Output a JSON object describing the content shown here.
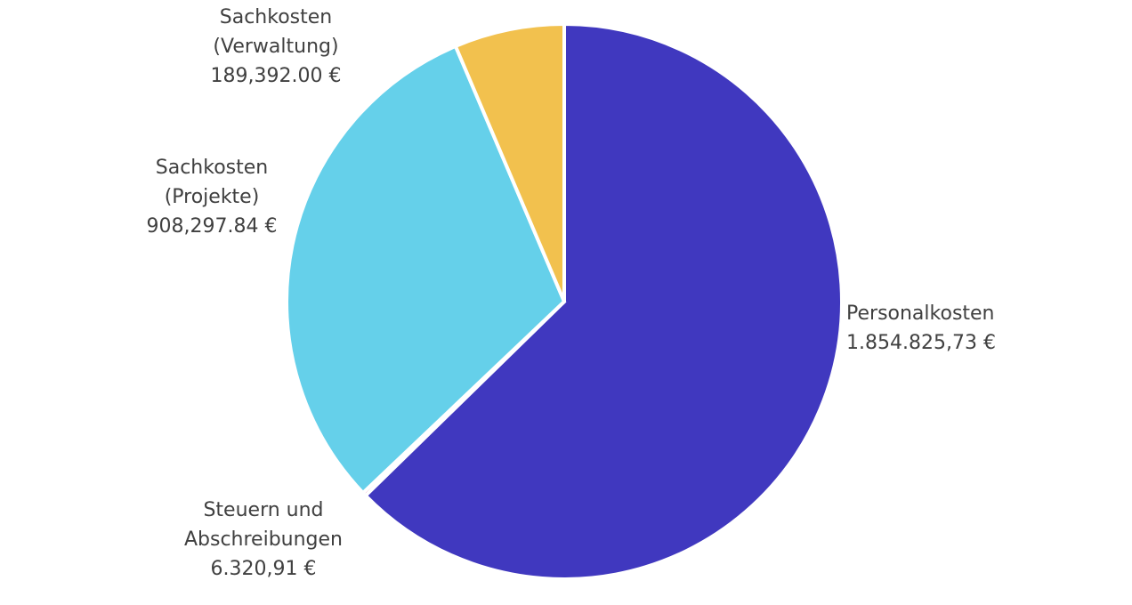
{
  "chart_data": {
    "type": "pie",
    "title": "",
    "start_angle_deg": 0,
    "direction": "clockwise",
    "slices": [
      {
        "name": "Personalkosten",
        "label_lines": [
          "Personalkosten",
          "1.854.825,73 €"
        ],
        "value": 1854825.73,
        "value_label": "1.854.825,73 €",
        "color": "#4038BF"
      },
      {
        "name": "Steuern und Abschreibungen",
        "label_lines": [
          "Steuern und",
          "Abschreibungen",
          "6.320,91 €"
        ],
        "value": 6320.91,
        "value_label": "6.320,91 €",
        "color": "#D94A6E"
      },
      {
        "name": "Sachkosten (Projekte)",
        "label_lines": [
          "Sachkosten",
          "(Projekte)",
          "908,297.84 €"
        ],
        "value": 908297.84,
        "value_label": "908,297.84 €",
        "color": "#65D0EA"
      },
      {
        "name": "Sachkosten (Verwaltung)",
        "label_lines": [
          "Sachkosten",
          "(Verwaltung)",
          "189,392.00 €"
        ],
        "value": 189392.0,
        "value_label": "189,392.00 €",
        "color": "#F2C14E"
      }
    ],
    "legend": "none",
    "data_labels": "outside"
  }
}
